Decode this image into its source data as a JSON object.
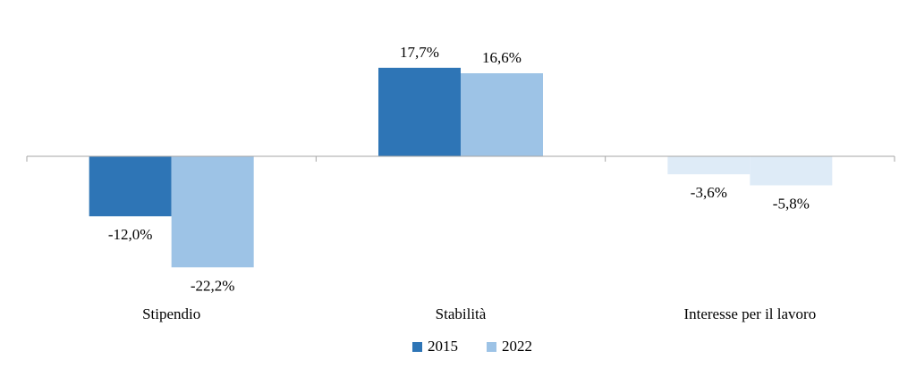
{
  "chart_data": {
    "type": "bar",
    "categories": [
      "Stipendio",
      "Stabilità",
      "Interesse per il lavoro"
    ],
    "series": [
      {
        "name": "2015",
        "values": [
          -12.0,
          17.7,
          -3.6
        ],
        "labels": [
          "-12,0%",
          "17,7%",
          "-3,6%"
        ],
        "colors": [
          "#2e75b6",
          "#2e75b6",
          "#deebf7"
        ]
      },
      {
        "name": "2022",
        "values": [
          -22.2,
          16.6,
          -5.8
        ],
        "labels": [
          "-22,2%",
          "16,6%",
          "-5,8%"
        ],
        "colors": [
          "#9dc3e6",
          "#9dc3e6",
          "#deebf7"
        ]
      }
    ],
    "legend": {
      "position": "bottom",
      "items": [
        {
          "label": "2015",
          "color": "#2e75b6"
        },
        {
          "label": "2022",
          "color": "#9dc3e6"
        }
      ]
    },
    "axis_color": "#a6a6a6",
    "grid": false
  }
}
